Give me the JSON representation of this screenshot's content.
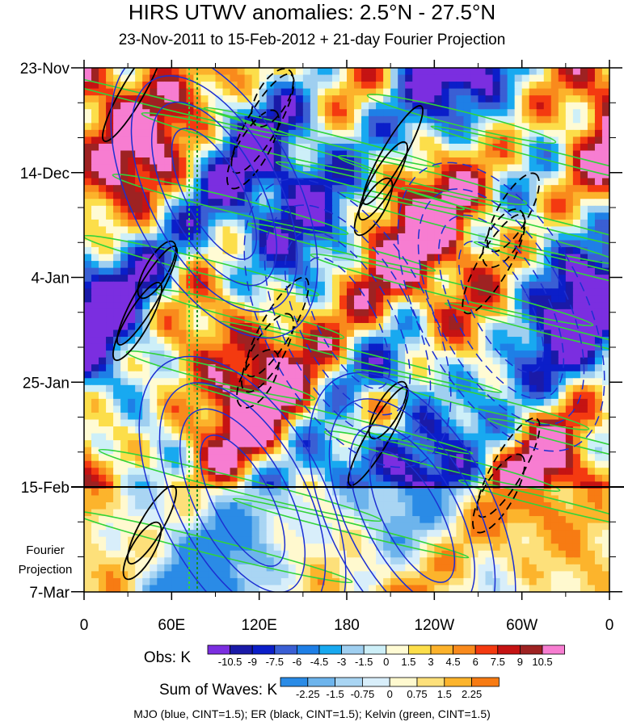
{
  "title": "HIRS UTWV anomalies: 2.5°N - 27.5°N",
  "subtitle": "23-Nov-2011 to 15-Feb-2012 + 21-day Fourier Projection",
  "chart_data": {
    "type": "heatmap",
    "xlabel": "",
    "ylabel": "",
    "x_ticks": [
      "0",
      "60E",
      "120E",
      "180",
      "120W",
      "60W",
      "0"
    ],
    "x_range": [
      0,
      360
    ],
    "y_ticks": [
      "23-Nov",
      "14-Dec",
      "4-Jan",
      "25-Jan",
      "15-Feb",
      "7-Mar"
    ],
    "y_range": [
      "23-Nov-2011",
      "7-Mar-2012"
    ],
    "observation_end": "15-Feb",
    "projection_label": "Fourier Projection",
    "obs_colorbar": {
      "label": "Obs: K",
      "levels": [
        "-10.5",
        "-9",
        "-7.5",
        "-6",
        "-4.5",
        "-3",
        "-1.5",
        "0",
        "1.5",
        "3",
        "4.5",
        "6",
        "7.5",
        "9",
        "10.5"
      ],
      "colors": [
        "#7b2ee0",
        "#1a1aa8",
        "#0b1ec9",
        "#3a5fd4",
        "#1e7fe6",
        "#18a9f0",
        "#9fcff0",
        "#cdeff8",
        "#fffbd4",
        "#fcde4a",
        "#fcb22b",
        "#f98a1c",
        "#f43a10",
        "#c51313",
        "#9e2222",
        "#f77dd1"
      ]
    },
    "waves_colorbar": {
      "label": "Sum of Waves: K",
      "levels": [
        "-2.25",
        "-1.5",
        "-0.75",
        "0",
        "0.75",
        "1.5",
        "2.25"
      ],
      "colors": [
        "#2a8be6",
        "#6db4ec",
        "#a9d5f3",
        "#d8eefa",
        "#fff9cf",
        "#fde07a",
        "#fcb42c",
        "#f77b13"
      ]
    },
    "contours": [
      {
        "name": "MJO",
        "color": "#1c2fd2",
        "cint": 1.5
      },
      {
        "name": "ER",
        "color": "#000000",
        "cint": 1.5
      },
      {
        "name": "Kelvin",
        "color": "#31d43a",
        "cint": 1.5
      }
    ]
  },
  "footer": "MJO (blue, CINT=1.5); ER (black, CINT=1.5); Kelvin (green, CINT=1.5)"
}
